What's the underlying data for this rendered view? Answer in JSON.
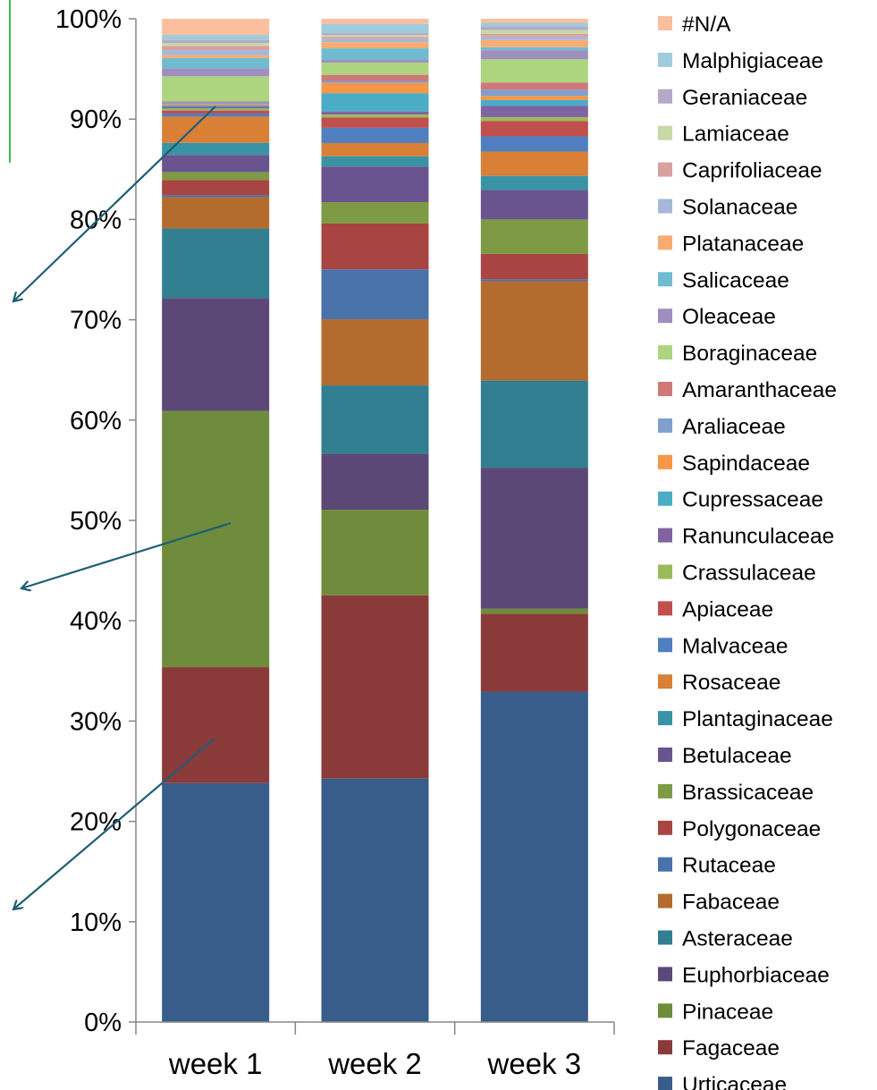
{
  "chart_data": {
    "type": "bar",
    "stacked": true,
    "percent": true,
    "categories": [
      "week 1",
      "week 2",
      "week 3"
    ],
    "ylim": [
      0,
      100
    ],
    "yticks": [
      "0%",
      "10%",
      "20%",
      "30%",
      "40%",
      "50%",
      "60%",
      "70%",
      "80%",
      "90%",
      "100%"
    ],
    "grid": false,
    "legend_position": "right",
    "series": [
      {
        "name": "Urticaceae",
        "color": "#385d8a",
        "values": [
          23.7,
          23.9,
          32.6
        ]
      },
      {
        "name": "Fagaceae",
        "color": "#8b3a3a",
        "values": [
          11.5,
          18.0,
          7.7
        ]
      },
      {
        "name": "Pinaceae",
        "color": "#6e8c3c",
        "values": [
          25.4,
          8.4,
          0.5
        ]
      },
      {
        "name": "Euphorbiaceae",
        "color": "#5c4876",
        "values": [
          11.2,
          5.5,
          13.9
        ]
      },
      {
        "name": "Asteraceae",
        "color": "#317f91",
        "values": [
          6.9,
          6.7,
          8.6
        ]
      },
      {
        "name": "Fabaceae",
        "color": "#b46c2e",
        "values": [
          3.1,
          6.5,
          9.8
        ]
      },
      {
        "name": "Rutaceae",
        "color": "#4a72aa",
        "values": [
          0.2,
          4.9,
          0.2
        ]
      },
      {
        "name": "Polygonaceae",
        "color": "#a84442",
        "values": [
          1.5,
          4.5,
          2.5
        ]
      },
      {
        "name": "Brassicaceae",
        "color": "#7e9a44",
        "values": [
          0.8,
          2.1,
          3.4
        ]
      },
      {
        "name": "Betulaceae",
        "color": "#6a5490",
        "values": [
          1.7,
          3.5,
          2.9
        ]
      },
      {
        "name": "Plantaginaceae",
        "color": "#3a93a5",
        "values": [
          1.2,
          1.0,
          1.4
        ]
      },
      {
        "name": "Rosaceae",
        "color": "#d97f36",
        "values": [
          2.6,
          1.3,
          2.4
        ]
      },
      {
        "name": "Malvaceae",
        "color": "#4f7fbf",
        "values": [
          0.3,
          1.5,
          1.5
        ]
      },
      {
        "name": "Apiaceae",
        "color": "#c0504d",
        "values": [
          0.3,
          1.0,
          1.5
        ]
      },
      {
        "name": "Crassulaceae",
        "color": "#9bbb59",
        "values": [
          0.2,
          0.3,
          0.4
        ]
      },
      {
        "name": "Ranunculaceae",
        "color": "#8064a2",
        "values": [
          0.2,
          0.3,
          1.1
        ]
      },
      {
        "name": "Cupressaceae",
        "color": "#4bacc6",
        "values": [
          0.1,
          1.8,
          0.6
        ]
      },
      {
        "name": "Sapindaceae",
        "color": "#f79646",
        "values": [
          0.1,
          1.0,
          0.4
        ]
      },
      {
        "name": "Araliaceae",
        "color": "#7f9fcf",
        "values": [
          0.2,
          0.2,
          0.6
        ]
      },
      {
        "name": "Amaranthaceae",
        "color": "#d07878",
        "values": [
          0.1,
          0.6,
          0.7
        ]
      },
      {
        "name": "Boraginaceae",
        "color": "#add57f",
        "values": [
          2.5,
          1.2,
          2.3
        ]
      },
      {
        "name": "Oleaceae",
        "color": "#9f8fbf",
        "values": [
          0.8,
          0.3,
          0.9
        ]
      },
      {
        "name": "Salicaceae",
        "color": "#6fbcd0",
        "values": [
          1.0,
          1.1,
          0.3
        ]
      },
      {
        "name": "Platanaceae",
        "color": "#f9ac72",
        "values": [
          0.3,
          0.6,
          0.7
        ]
      },
      {
        "name": "Solanaceae",
        "color": "#a5b8d9",
        "values": [
          0.5,
          0.3,
          0.3
        ]
      },
      {
        "name": "Caprifoliaceae",
        "color": "#d9a0a0",
        "values": [
          0.4,
          0.2,
          0.3
        ]
      },
      {
        "name": "Lamiaceae",
        "color": "#c8d9a8",
        "values": [
          0.3,
          0.2,
          0.4
        ]
      },
      {
        "name": "Geraniaceae",
        "color": "#b5a8c9",
        "values": [
          0.3,
          0.2,
          0.3
        ]
      },
      {
        "name": "Malphigiaceae",
        "color": "#9fcbdc",
        "values": [
          0.5,
          0.9,
          0.4
        ]
      },
      {
        "name": "#N/A",
        "color": "#fbbf9e",
        "values": [
          1.6,
          0.5,
          0.4
        ]
      }
    ],
    "axis_color": "#868686",
    "arrow_color": "#1f5e75"
  }
}
